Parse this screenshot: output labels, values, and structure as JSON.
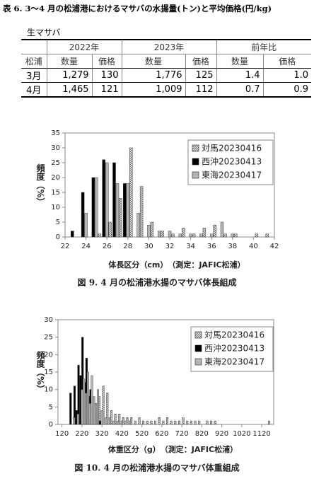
{
  "title": "表 6. 3～4 月の松浦港におけるマサバの水揚量(トン)と平均価格(円/kg)",
  "table": {
    "caption": "生マサバ",
    "header": [
      "2022年",
      "2023年",
      "前年比"
    ],
    "subheader": [
      "松浦",
      "数量",
      "価格",
      "数量",
      "価格",
      "数量",
      "価格"
    ],
    "rows": [
      [
        "3月",
        "1,279",
        "130",
        "1,776",
        "125",
        "1.4",
        "1.0"
      ],
      [
        "4月",
        "1,465",
        "121",
        "1,009",
        "112",
        "0.7",
        "0.9"
      ]
    ]
  },
  "chart_data": [
    {
      "type": "bar",
      "y_label": "頻度（%）",
      "x_label": "体長区分（cm）　（測定：JAFIC松浦）",
      "caption": "図 9.  4 月の松浦港水揚のマサバ体長組成",
      "x": [
        23,
        24,
        25,
        26,
        27,
        28,
        29,
        30,
        31,
        32,
        33,
        34,
        35,
        36,
        37,
        38,
        39,
        40,
        41
      ],
      "xlim": [
        22,
        42
      ],
      "xticks": [
        22,
        24,
        26,
        28,
        30,
        32,
        34,
        36,
        38,
        40,
        42
      ],
      "ylim": [
        0,
        35
      ],
      "yticks": [
        0,
        5,
        10,
        15,
        20,
        25,
        30,
        35
      ],
      "legend": "upper right",
      "series": [
        {
          "name": "対馬20230416",
          "color": "#ffffff",
          "pattern": "crosshatch",
          "values": [
            0,
            0,
            1,
            5,
            13,
            30,
            17,
            5,
            2,
            1,
            3,
            1,
            3,
            4,
            1,
            1,
            0,
            1,
            1
          ]
        },
        {
          "name": "西沖20230413",
          "color": "#000000",
          "values": [
            2,
            15,
            20,
            26,
            25,
            18,
            0,
            0,
            0,
            0,
            0,
            0,
            0,
            0,
            0,
            0,
            0,
            0,
            0
          ]
        },
        {
          "name": "東海20230417",
          "color": "#b4b4b4",
          "values": [
            0,
            8,
            20,
            25,
            18,
            18,
            8,
            4,
            2,
            2,
            1,
            1,
            1,
            1,
            5,
            1,
            0,
            0,
            0
          ]
        }
      ]
    },
    {
      "type": "bar",
      "y_label": "頻度（%）",
      "x_label": "体重区分（g）　（測定：JAFIC松浦）",
      "caption": "図 10. 4 月の松浦港水揚のマサバ体重組成",
      "xlim": [
        100,
        1180
      ],
      "xticks": [
        120,
        220,
        320,
        420,
        520,
        620,
        720,
        820,
        920,
        1020,
        1120
      ],
      "ylim": [
        0,
        30
      ],
      "yticks": [
        0,
        5,
        10,
        15,
        20,
        25,
        30
      ],
      "legend": "upper right",
      "series": [
        {
          "name": "対馬20230416",
          "color": "#ffffff",
          "pattern": "crosshatch",
          "x": [
            220,
            240,
            260,
            280,
            300,
            320,
            340,
            360,
            380,
            400,
            420,
            440,
            460,
            480,
            500,
            520,
            540,
            560,
            580,
            600,
            620,
            640,
            660,
            680,
            700,
            720,
            740,
            760,
            780,
            800,
            840,
            860,
            880,
            1150
          ],
          "values": [
            3,
            5,
            9,
            6,
            8,
            11,
            9,
            4,
            3,
            3,
            2,
            2,
            2,
            1,
            2,
            1,
            1,
            1,
            1,
            2,
            1,
            2,
            1,
            1,
            1,
            2,
            1,
            1,
            1,
            1,
            1,
            1,
            1,
            1
          ]
        },
        {
          "name": "西沖20230413",
          "color": "#000000",
          "x": [
            170,
            190,
            200,
            210,
            220,
            230,
            240,
            250,
            260,
            270,
            280,
            290,
            300,
            310,
            320
          ],
          "values": [
            9,
            11,
            4,
            17,
            14,
            25,
            12,
            19,
            8,
            10,
            4,
            3,
            2,
            1,
            1
          ]
        },
        {
          "name": "東海20230417",
          "color": "#b4b4b4",
          "x": [
            180,
            200,
            220,
            230,
            240,
            250,
            260,
            270,
            280,
            290,
            300,
            320,
            340,
            360,
            380,
            400,
            420,
            440,
            460
          ],
          "values": [
            2,
            3,
            10,
            13,
            9,
            15,
            6,
            14,
            8,
            6,
            10,
            4,
            2,
            2,
            1,
            1,
            1,
            1,
            1
          ]
        }
      ]
    }
  ]
}
